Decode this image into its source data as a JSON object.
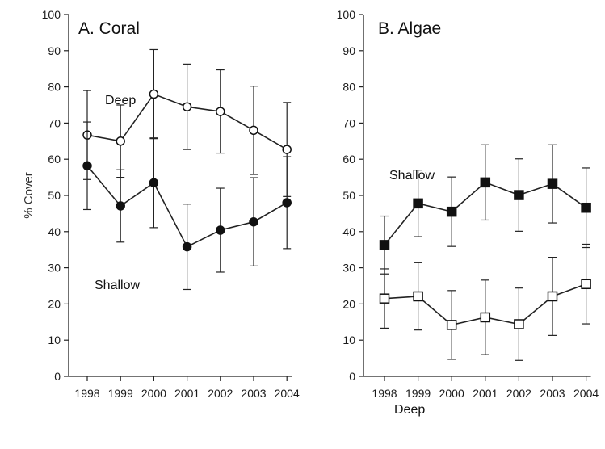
{
  "chart_data": [
    {
      "type": "line",
      "title": "A. Coral",
      "ylabel": "% Cover",
      "xlabel": "",
      "ylim": [
        0,
        100
      ],
      "yticks": [
        "0",
        "10",
        "20",
        "30",
        "40",
        "50",
        "60",
        "70",
        "80",
        "90",
        "100"
      ],
      "categories": [
        "1998",
        "1999",
        "2000",
        "2001",
        "2002",
        "2003",
        "2004"
      ],
      "grid": false,
      "series": [
        {
          "name": "Deep",
          "marker": "open-circle",
          "values": [
            66.7,
            65,
            78,
            74.5,
            73.2,
            68,
            62.7
          ],
          "error": [
            12.3,
            10,
            12.3,
            11.8,
            11.5,
            12.2,
            13
          ]
        },
        {
          "name": "Shallow",
          "marker": "filled-circle",
          "values": [
            58.2,
            47.1,
            53.5,
            35.8,
            40.4,
            42.7,
            48
          ],
          "error": [
            12.1,
            10,
            12.4,
            11.8,
            11.6,
            12.2,
            12.7
          ]
        }
      ]
    },
    {
      "type": "line",
      "title": "B. Algae",
      "ylabel": "",
      "xlabel": "",
      "ylim": [
        0,
        100
      ],
      "yticks": [
        "0",
        "10",
        "20",
        "30",
        "40",
        "50",
        "60",
        "70",
        "80",
        "90",
        "100"
      ],
      "categories": [
        "1998",
        "1999",
        "2000",
        "2001",
        "2002",
        "2003",
        "2004"
      ],
      "grid": false,
      "series": [
        {
          "name": "Shallow",
          "marker": "filled-square",
          "values": [
            36.3,
            47.8,
            45.5,
            53.6,
            50.1,
            53.2,
            46.6
          ],
          "error": [
            8,
            9.2,
            9.6,
            10.4,
            10,
            10.8,
            11
          ]
        },
        {
          "name": "Deep",
          "marker": "open-square",
          "values": [
            21.5,
            22.1,
            14.2,
            16.3,
            14.4,
            22.1,
            25.5
          ],
          "error": [
            8.2,
            9.3,
            9.5,
            10.3,
            10,
            10.8,
            11
          ]
        }
      ]
    }
  ]
}
